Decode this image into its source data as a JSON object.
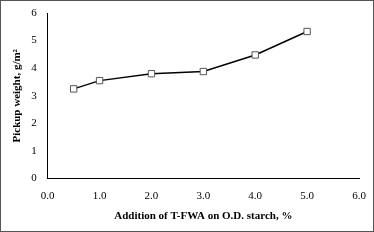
{
  "chart_data": {
    "type": "line",
    "x_label": "Addition of T-FWA on O.D. starch, %",
    "y_label": "Pickup weight, g/m²",
    "x": [
      0.5,
      1,
      2,
      3,
      4,
      5
    ],
    "values": [
      3.25,
      3.55,
      3.8,
      3.88,
      4.48,
      5.33
    ],
    "color": "#000000",
    "marker": "square",
    "xlim": [
      0,
      6
    ],
    "xticks": [
      {
        "value": 0,
        "label": "0.0"
      },
      {
        "value": 1,
        "label": "1.0"
      },
      {
        "value": 2,
        "label": "2.0"
      },
      {
        "value": 3,
        "label": "3.0"
      },
      {
        "value": 4,
        "label": "4.0"
      },
      {
        "value": 5,
        "label": "5.0"
      },
      {
        "value": 6,
        "label": "6.0"
      }
    ],
    "ylim": [
      0,
      6
    ],
    "yticks": [
      0,
      1,
      2,
      3,
      4,
      5,
      6
    ],
    "grid": false
  }
}
